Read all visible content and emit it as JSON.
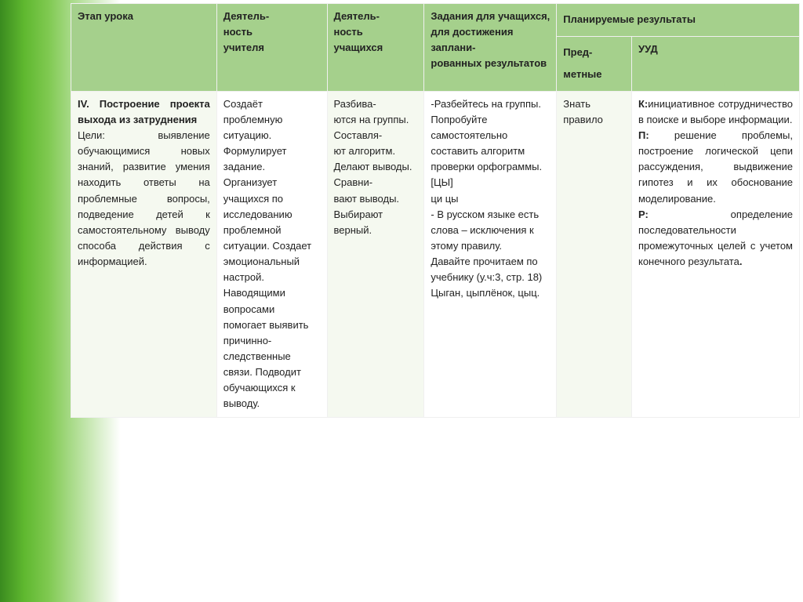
{
  "header": {
    "col0": "Этап урока",
    "col1": "Деятель-\nность\nучителя",
    "col2": "Деятель-\nность\nучащихся",
    "col3": "Задания для учащихся, для достижения заплани-\nрованных результатов",
    "col45": "Планируемые результаты",
    "col4": "Пред-\nметные",
    "col5": "УУД"
  },
  "row": {
    "stage_num": "IV.",
    "stage_title": "Построение проекта выхода из затруднения",
    "stage_body": "Цели: выявление обучающимися новых знаний, развитие умения находить ответы на проблемные вопросы, подведение детей к самостоятельному выводу способа действия с информацией.",
    "teacher": "Создаёт проблемную ситуацию. Формулирует задание. Организует учащихся по исследованию проблемной ситуации. Создает эмоциональный настрой. Наводящими вопросами помогает выявить причинно-следственные связи. Подводит обучающихся к выводу.",
    "students": "Разбива-\nются на группы. Составля-\nют алгоритм. Делают выводы. Сравни-\nвают выводы. Выбирают верный.",
    "tasks": "-Разбейтесь на группы. Попробуйте самостоятельно составить алгоритм проверки орфограммы. [ЦЫ]\nци   цы\n- В русском языке есть слова – исключения к этому правилу.\n Давайте прочитаем по учебнику (у.ч:3, стр. 18)\nЦыган, цыплёнок, цыц.",
    "subject": "Знать правило",
    "uud_k_label": "К:",
    "uud_k": "инициативное сотрудничество в поиске и выборе информации.",
    "uud_p_label": "П:",
    "uud_p": " решение проблемы, построение логической цепи рассуждения, выдвижение гипотез и их обоснование моделирование.",
    "uud_r_label": "Р:",
    "uud_r": " определение последовательности промежуточных целей с учетом конечного результата",
    "uud_end": "."
  },
  "colors": {
    "header_bg": "#a5d08c",
    "body_light": "#f5f9f0",
    "border": "#f0f0f0",
    "text": "#222222"
  }
}
